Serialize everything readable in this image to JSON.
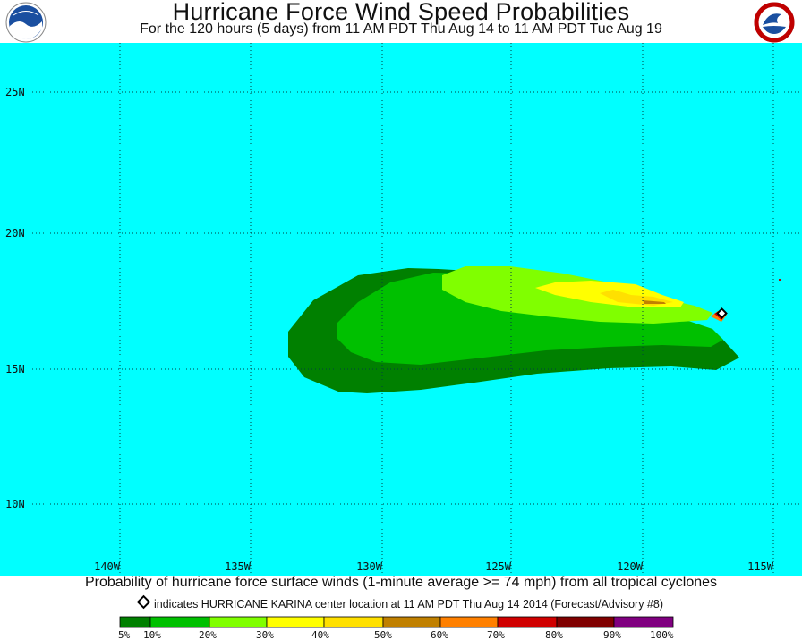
{
  "header": {
    "title": "Hurricane Force Wind Speed Probabilities",
    "subtitle": "For the 120 hours (5 days) from 11 AM PDT Thu Aug 14 to 11 AM PDT Tue Aug 19"
  },
  "map": {
    "background_color": "#00ffff",
    "lat_labels": [
      "25N",
      "20N",
      "15N",
      "10N"
    ],
    "lon_labels": [
      "140W",
      "135W",
      "130W",
      "125W",
      "120W",
      "115W"
    ],
    "storm_marker": "diamond"
  },
  "probability_bands": {
    "5-10": "#008000",
    "10-20": "#00c000",
    "20-30": "#80ff00",
    "30-40": "#ffff00",
    "40-50": "#ffe000",
    "50-60": "#c08000",
    "60-70": "#ff8000",
    "70-80": "#d00000",
    "80-90": "#800000",
    "90-100": "#800080"
  },
  "footer": {
    "description": "Probability of hurricane force surface winds (1-minute average >= 74 mph) from all tropical cyclones",
    "marker_note": "indicates HURRICANE KARINA center location at 11 AM PDT Thu Aug 14 2014 (Forecast/Advisory #8)"
  },
  "legend": {
    "colors": [
      "#008000",
      "#00c000",
      "#80ff00",
      "#ffff00",
      "#ffe000",
      "#c08000",
      "#ff8000",
      "#d00000",
      "#800000",
      "#800080"
    ],
    "labels": [
      "5%",
      "10%",
      "20%",
      "30%",
      "40%",
      "50%",
      "60%",
      "70%",
      "80%",
      "90%",
      "100%"
    ]
  }
}
